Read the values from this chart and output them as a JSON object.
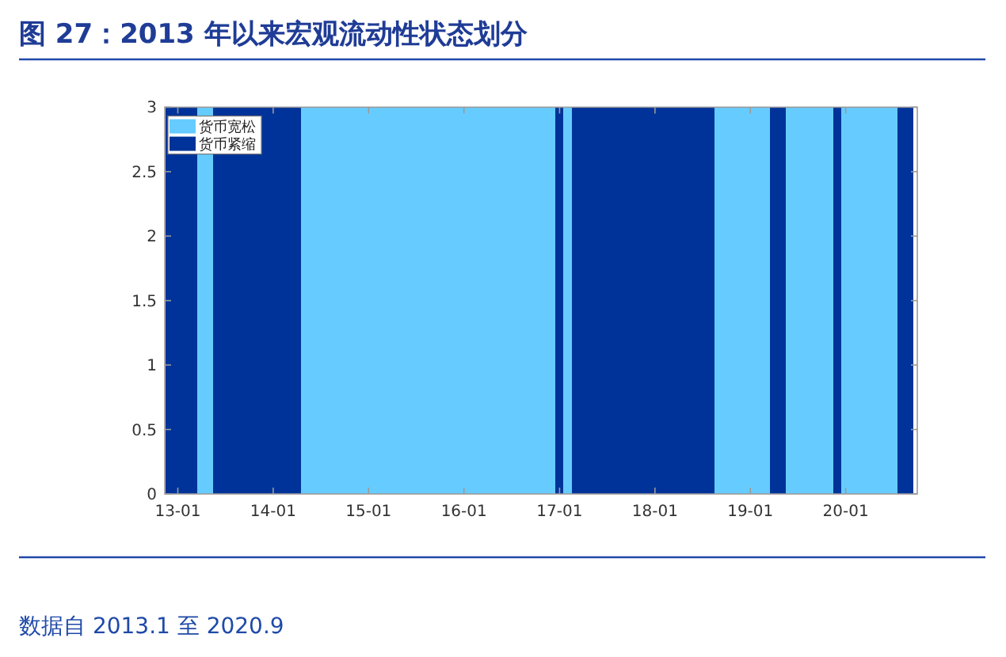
{
  "chart_data": {
    "type": "bar",
    "title": "图 27：2013 年以来宏观流动性状态划分",
    "annotations": [
      "数据自 2013.1 至 2020.9"
    ],
    "bands": [
      {
        "axis": "x",
        "from": "2013-03-16",
        "to": "2013-05-16",
        "label": "货币宽松",
        "color": "#66ccff"
      },
      {
        "axis": "x",
        "from": "2014-04-16",
        "to": "2016-12-16",
        "color": "#66ccff"
      },
      {
        "axis": "x",
        "from": "2017-01-16",
        "to": "2017-02-16",
        "color": "#66ccff"
      },
      {
        "axis": "x",
        "from": "2018-08-16",
        "to": "2019-03-16",
        "color": "#66ccff"
      },
      {
        "axis": "x",
        "from": "2019-05-16",
        "to": "2019-11-16",
        "color": "#66ccff"
      },
      {
        "axis": "x",
        "from": "2019-12-16",
        "to": "2020-07-16",
        "color": "#66ccff"
      },
      {
        "axis": "x",
        "from": "2012-11-16",
        "to": "2013-03-16",
        "label": "货币紧缩",
        "color": "#003399"
      },
      {
        "axis": "x",
        "from": "2013-05-16",
        "to": "2014-04-16",
        "color": "#003399"
      },
      {
        "axis": "x",
        "from": "2016-12-16",
        "to": "2017-01-16",
        "color": "#003399"
      },
      {
        "axis": "x",
        "from": "2017-02-16",
        "to": "2018-08-16",
        "color": "#003399"
      },
      {
        "axis": "x",
        "from": "2019-03-16",
        "to": "2019-05-16",
        "color": "#003399"
      },
      {
        "axis": "x",
        "from": "2019-11-16",
        "to": "2019-12-16",
        "color": "#003399"
      },
      {
        "axis": "x",
        "from": "2020-07-16",
        "to": "2020-09-16",
        "color": "#003399"
      }
    ],
    "xlim": [
      "2012-11-12",
      "2020-10-01"
    ],
    "xticks": [
      {
        "value": "2013-01",
        "label": "13-01"
      },
      {
        "value": "2014-01",
        "label": "14-01"
      },
      {
        "value": "2015-01",
        "label": "15-01"
      },
      {
        "value": "2016-01",
        "label": "16-01"
      },
      {
        "value": "2017-01",
        "label": "17-01"
      },
      {
        "value": "2018-01",
        "label": "18-01"
      },
      {
        "value": "2019-01",
        "label": "19-01"
      },
      {
        "value": "2020-01",
        "label": "20-01"
      }
    ],
    "ylim": [
      0,
      3
    ],
    "yticks": [
      0,
      0.5,
      1,
      1.5,
      2,
      2.5,
      3
    ],
    "legend": "top left"
  }
}
